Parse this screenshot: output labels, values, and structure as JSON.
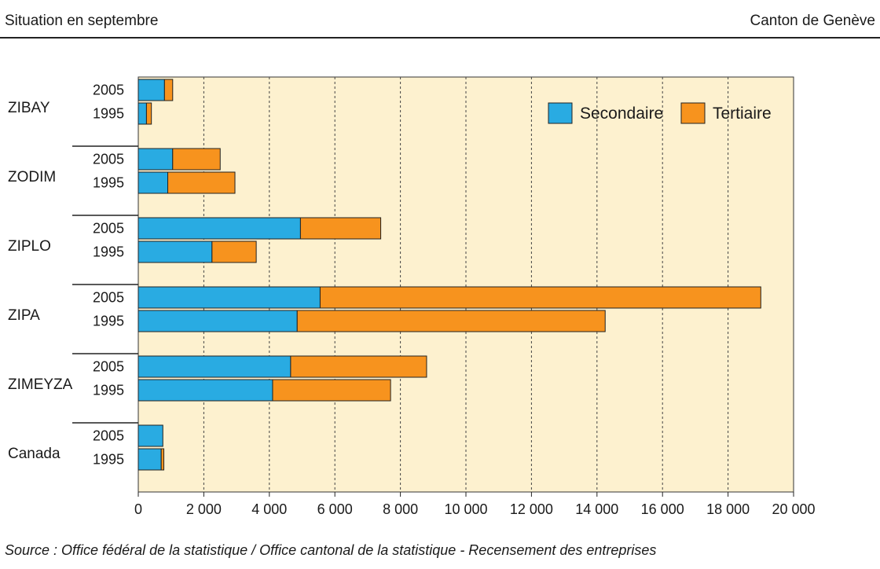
{
  "header": {
    "left": "Situation en septembre",
    "right": "Canton de Genève"
  },
  "footer": {
    "source": "Source : Office fédéral de la statistique / Office cantonal de la statistique - Recensement des entreprises"
  },
  "colors": {
    "secondaire": "#29abe2",
    "tertiaire": "#f7931e",
    "plot_bg": "#fdf1cf"
  },
  "chart_data": {
    "type": "bar",
    "orientation": "horizontal",
    "stacked": true,
    "groups": [
      "ZIBAY",
      "ZODIM",
      "ZIPLO",
      "ZIPA",
      "ZIMEYZA",
      "Canada"
    ],
    "years": [
      "2005",
      "1995"
    ],
    "series": [
      {
        "name": "Secondaire",
        "values": [
          [
            800,
            250
          ],
          [
            1050,
            900
          ],
          [
            4950,
            2250
          ],
          [
            5550,
            4850
          ],
          [
            4650,
            4100
          ],
          [
            750,
            700
          ]
        ]
      },
      {
        "name": "Tertiaire",
        "values": [
          [
            250,
            150
          ],
          [
            1450,
            2050
          ],
          [
            2450,
            1350
          ],
          [
            13450,
            9400
          ],
          [
            4150,
            3600
          ],
          [
            0,
            80
          ]
        ]
      }
    ],
    "xlim": [
      0,
      20000
    ],
    "xticks": [
      "0",
      "2 000",
      "4 000",
      "6 000",
      "8 000",
      "10 000",
      "12 000",
      "14 000",
      "16 000",
      "18 000",
      "20 000"
    ],
    "grid": "vertical dashed",
    "legend": "top-right"
  }
}
